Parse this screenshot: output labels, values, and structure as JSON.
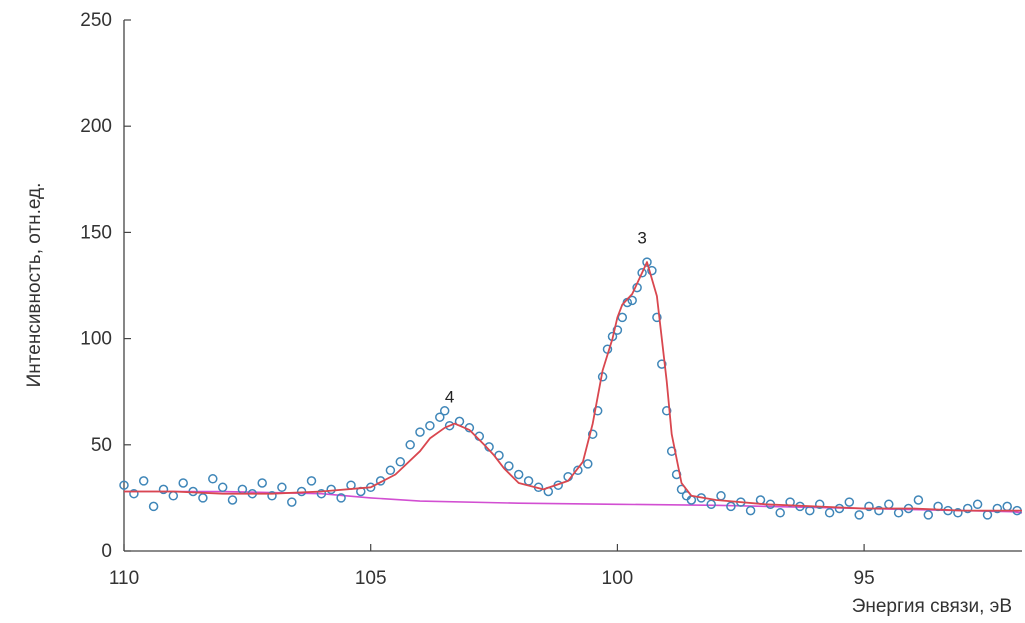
{
  "chart_data": {
    "type": "scatter",
    "title": "",
    "xlabel": "Энергия связи, эВ",
    "ylabel": "Интенсивность, отн.ед.",
    "xlim": [
      110,
      91.8
    ],
    "ylim": [
      0,
      250
    ],
    "x_reversed": true,
    "grid": false,
    "xticks": [
      "110",
      "105",
      "100",
      "95"
    ],
    "xtick_values": [
      110,
      105,
      100,
      95
    ],
    "yticks": [
      "0",
      "50",
      "100",
      "150",
      "200",
      "250"
    ],
    "ytick_values": [
      0,
      50,
      100,
      150,
      200,
      250
    ],
    "colors": {
      "points": "#3f86b8",
      "fit": "#d9474f",
      "background": "#d24fd2",
      "axis": "#444444"
    },
    "peak_labels": [
      {
        "text": "3",
        "x": 99.5,
        "y": 143
      },
      {
        "text": "4",
        "x": 103.4,
        "y": 68
      }
    ],
    "fit_curve": {
      "x": [
        110,
        109,
        108,
        107,
        106,
        105,
        104.5,
        104,
        103.8,
        103.5,
        103.3,
        103,
        102.7,
        102.5,
        102.3,
        102,
        101.5,
        101,
        100.7,
        100.5,
        100.3,
        100.1,
        100,
        99.9,
        99.7,
        99.5,
        99.4,
        99.2,
        99,
        98.9,
        98.7,
        98.5,
        98,
        97,
        96,
        95,
        94,
        93,
        92,
        91.8
      ],
      "y": [
        28,
        28,
        27,
        27,
        28,
        30,
        36,
        47,
        53,
        58,
        60,
        57,
        50,
        45,
        39,
        32,
        29,
        33,
        42,
        60,
        85,
        100,
        110,
        116,
        121,
        131,
        136,
        120,
        80,
        55,
        32,
        26,
        24,
        22,
        21,
        20,
        20,
        19,
        19,
        19
      ]
    },
    "background_line": {
      "x": [
        110,
        108,
        106,
        105,
        104,
        102,
        100,
        98,
        96,
        94,
        92,
        91.8
      ],
      "y": [
        28,
        28,
        27,
        25,
        23.5,
        22.5,
        22,
        21.5,
        20.5,
        19.5,
        18.5,
        18
      ]
    },
    "series": [
      {
        "kind": "points",
        "x": [
          110,
          109.8,
          109.6,
          109.4,
          109.2,
          109,
          108.8,
          108.6,
          108.4,
          108.2,
          108,
          107.8,
          107.6,
          107.4,
          107.2,
          107,
          106.8,
          106.6,
          106.4,
          106.2,
          106,
          105.8,
          105.6,
          105.4,
          105.2,
          105,
          104.8,
          104.6,
          104.4,
          104.2,
          104,
          103.8,
          103.6,
          103.5,
          103.4,
          103.2,
          103,
          102.8,
          102.6,
          102.4,
          102.2,
          102,
          101.8,
          101.6,
          101.4,
          101.2,
          101,
          100.8,
          100.6,
          100.5,
          100.4,
          100.3,
          100.2,
          100.1,
          100,
          99.9,
          99.8,
          99.7,
          99.6,
          99.5,
          99.4,
          99.3,
          99.2,
          99.1,
          99,
          98.9,
          98.8,
          98.7,
          98.6,
          98.5,
          98.3,
          98.1,
          97.9,
          97.7,
          97.5,
          97.3,
          97.1,
          96.9,
          96.7,
          96.5,
          96.3,
          96.1,
          95.9,
          95.7,
          95.5,
          95.3,
          95.1,
          94.9,
          94.7,
          94.5,
          94.3,
          94.1,
          93.9,
          93.7,
          93.5,
          93.3,
          93.1,
          92.9,
          92.7,
          92.5,
          92.3,
          92.1,
          91.9
        ],
        "y": [
          31,
          27,
          33,
          21,
          29,
          26,
          32,
          28,
          25,
          34,
          30,
          24,
          29,
          27,
          32,
          26,
          30,
          23,
          28,
          33,
          27,
          29,
          25,
          31,
          28,
          30,
          33,
          38,
          42,
          50,
          56,
          59,
          63,
          66,
          59,
          61,
          58,
          54,
          49,
          45,
          40,
          36,
          33,
          30,
          28,
          31,
          35,
          38,
          41,
          55,
          66,
          82,
          95,
          101,
          104,
          110,
          117,
          118,
          124,
          131,
          136,
          132,
          110,
          88,
          66,
          47,
          36,
          29,
          26,
          24,
          25,
          22,
          26,
          21,
          23,
          19,
          24,
          22,
          18,
          23,
          21,
          19,
          22,
          18,
          20,
          23,
          17,
          21,
          19,
          22,
          18,
          20,
          24,
          17,
          21,
          19,
          18,
          20,
          22,
          17,
          20,
          21,
          19
        ]
      }
    ]
  }
}
